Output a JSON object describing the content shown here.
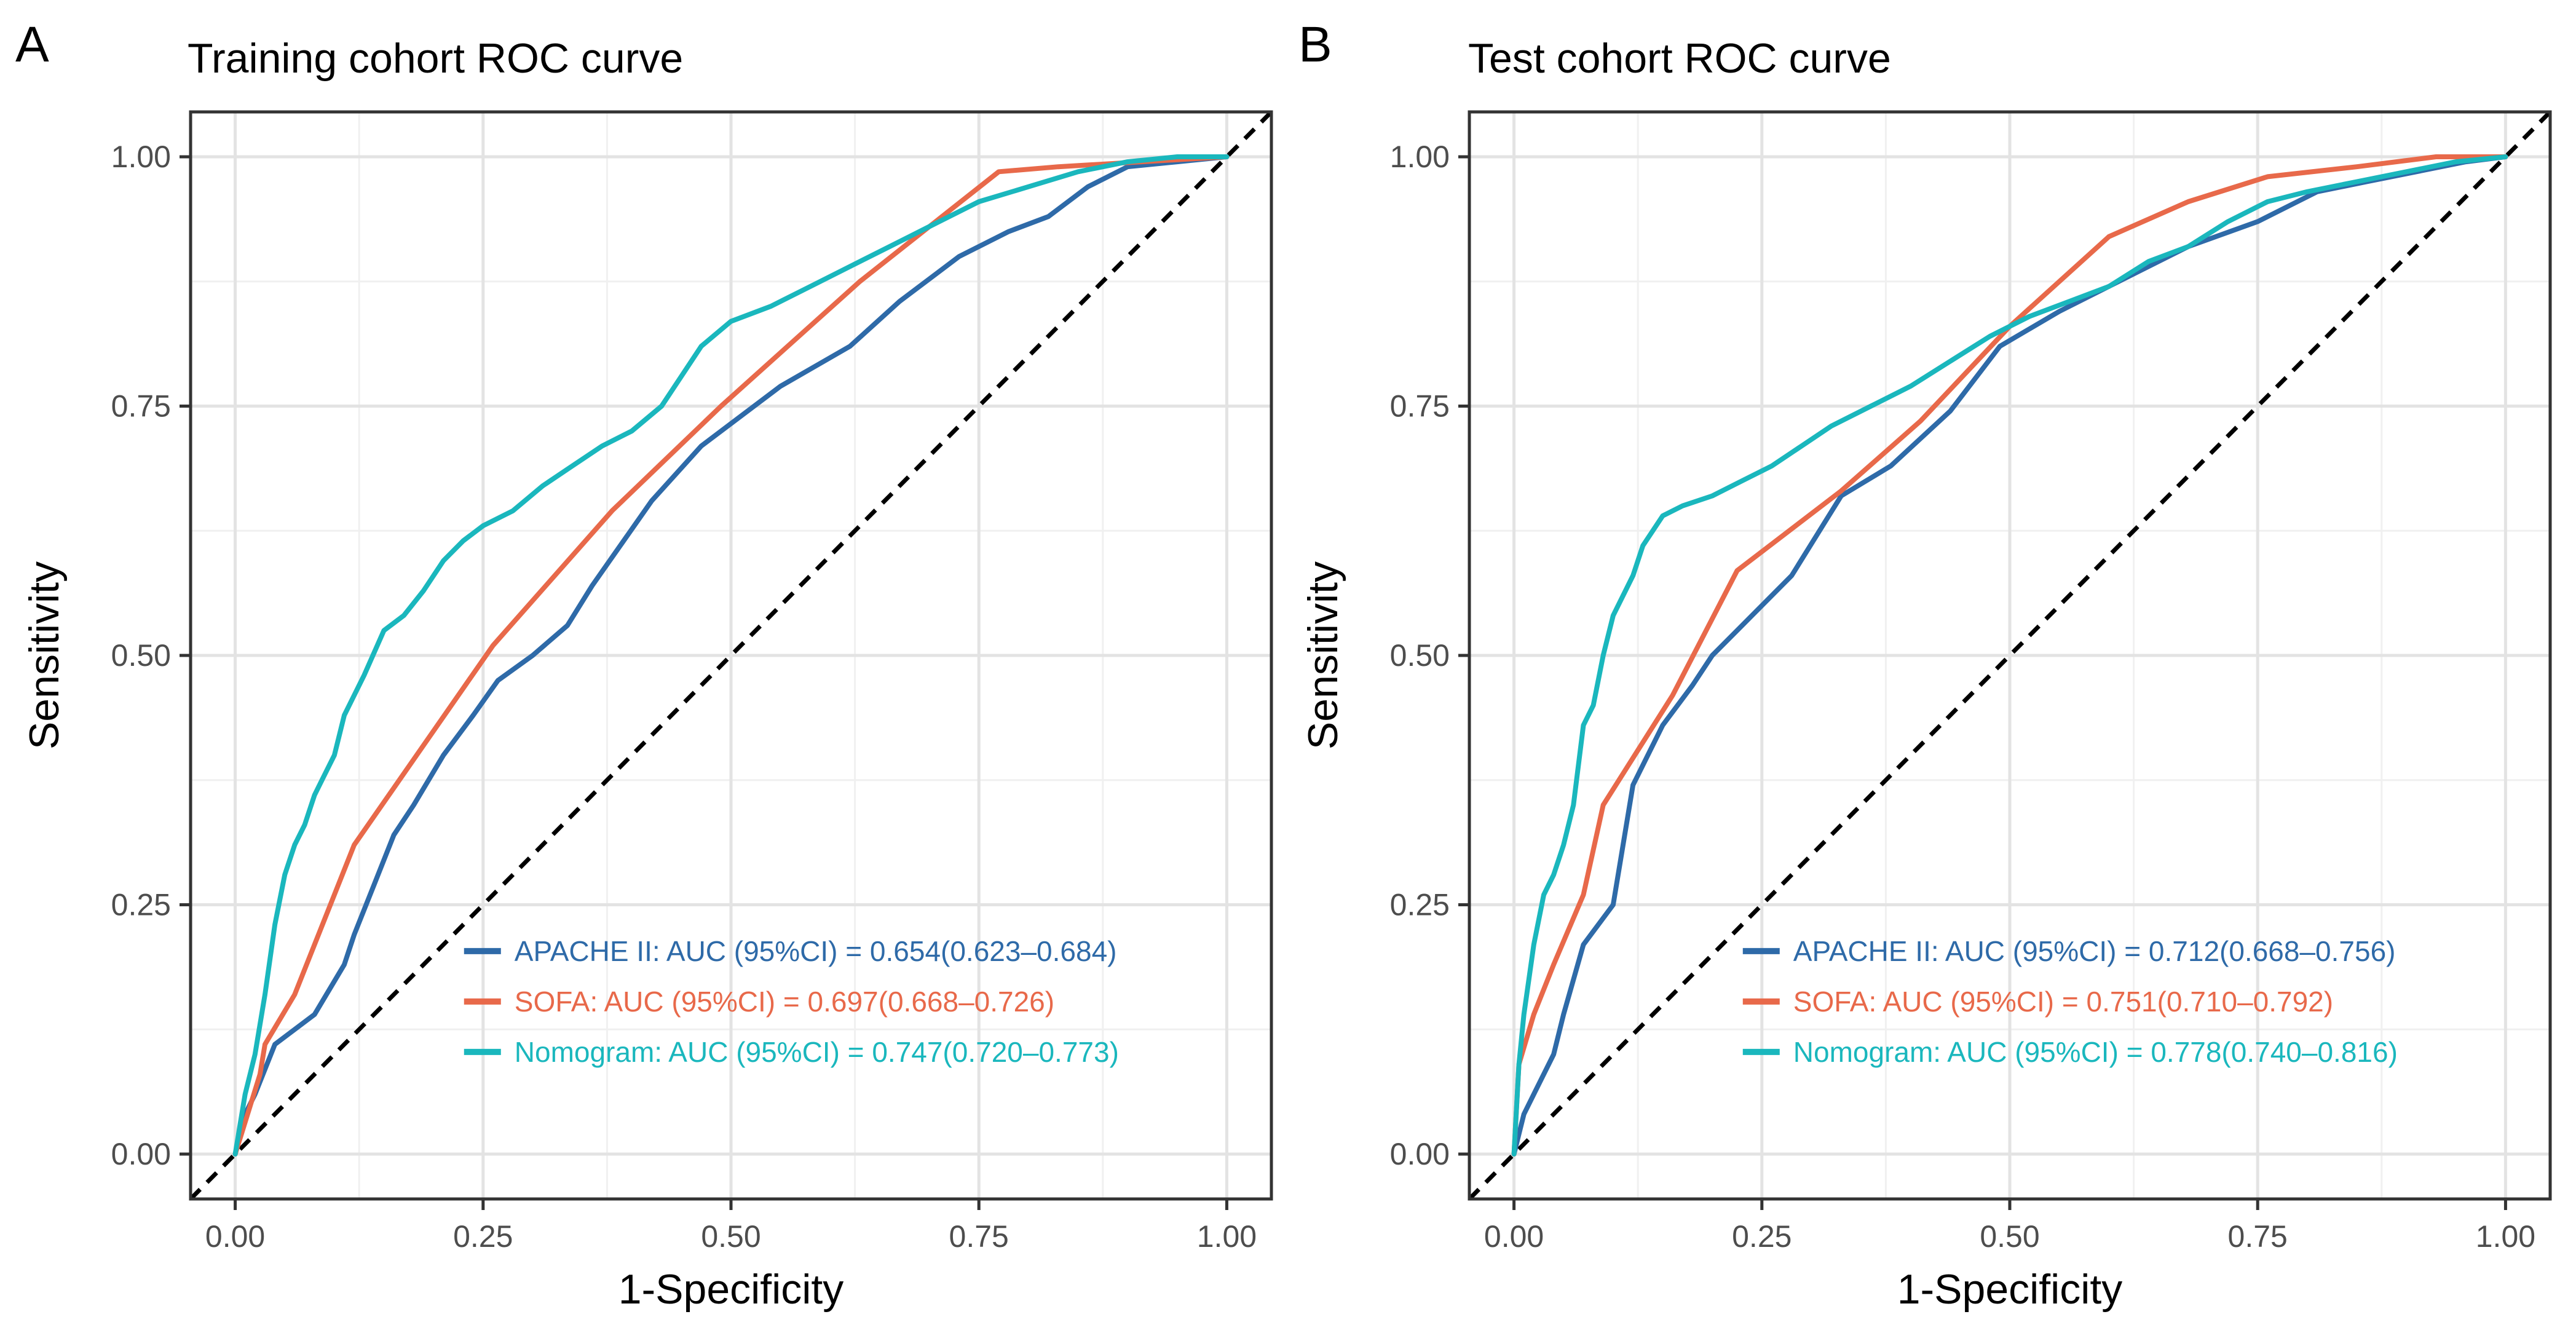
{
  "chart_data": [
    {
      "type": "line",
      "panel_label": "A",
      "title": "Training cohort ROC curve",
      "xlabel": "1-Specificity",
      "ylabel": "Sensitivity",
      "xlim": [
        0,
        1
      ],
      "ylim": [
        0,
        1
      ],
      "xticks": [
        "0.00",
        "0.25",
        "0.50",
        "0.75",
        "1.00"
      ],
      "yticks": [
        "0.00",
        "0.25",
        "0.50",
        "0.75",
        "1.00"
      ],
      "grid": true,
      "legend_position": "bottom-right",
      "reference_line": "diagonal dashed",
      "series": [
        {
          "name": "APACHE II",
          "label": "APACHE II: AUC (95%CI) = 0.654(0.623–0.684)",
          "color": "#2E6AA8",
          "x": [
            0,
            0.01,
            0.02,
            0.04,
            0.08,
            0.11,
            0.12,
            0.14,
            0.16,
            0.18,
            0.21,
            0.24,
            0.265,
            0.3,
            0.335,
            0.36,
            0.42,
            0.47,
            0.55,
            0.62,
            0.67,
            0.73,
            0.78,
            0.82,
            0.86,
            0.9,
            0.95,
            1.0
          ],
          "y": [
            0,
            0.04,
            0.06,
            0.11,
            0.14,
            0.19,
            0.22,
            0.27,
            0.32,
            0.35,
            0.4,
            0.44,
            0.475,
            0.5,
            0.53,
            0.57,
            0.655,
            0.71,
            0.77,
            0.81,
            0.855,
            0.9,
            0.925,
            0.94,
            0.97,
            0.99,
            0.995,
            1.0
          ]
        },
        {
          "name": "SOFA",
          "label": "SOFA: AUC (95%CI) = 0.697(0.668–0.726)",
          "color": "#E8694A",
          "x": [
            0,
            0.025,
            0.03,
            0.06,
            0.12,
            0.19,
            0.26,
            0.38,
            0.49,
            0.63,
            0.77,
            0.83,
            1.0
          ],
          "y": [
            0,
            0.08,
            0.11,
            0.16,
            0.31,
            0.41,
            0.51,
            0.645,
            0.75,
            0.875,
            0.985,
            0.99,
            1.0
          ]
        },
        {
          "name": "Nomogram",
          "label": "Nomogram: AUC (95%CI) = 0.747(0.720–0.773)",
          "color": "#1AB7BD",
          "x": [
            0,
            0.005,
            0.01,
            0.02,
            0.03,
            0.04,
            0.05,
            0.06,
            0.07,
            0.08,
            0.09,
            0.1,
            0.11,
            0.13,
            0.15,
            0.17,
            0.19,
            0.21,
            0.23,
            0.25,
            0.28,
            0.31,
            0.34,
            0.37,
            0.4,
            0.43,
            0.45,
            0.47,
            0.5,
            0.54,
            0.58,
            0.62,
            0.66,
            0.7,
            0.75,
            0.8,
            0.85,
            0.9,
            0.95,
            1.0
          ],
          "y": [
            0,
            0.03,
            0.06,
            0.1,
            0.16,
            0.23,
            0.28,
            0.31,
            0.33,
            0.36,
            0.38,
            0.4,
            0.44,
            0.48,
            0.525,
            0.54,
            0.565,
            0.595,
            0.615,
            0.63,
            0.645,
            0.67,
            0.69,
            0.71,
            0.725,
            0.75,
            0.78,
            0.81,
            0.835,
            0.85,
            0.87,
            0.89,
            0.91,
            0.93,
            0.955,
            0.97,
            0.985,
            0.995,
            1.0,
            1.0
          ]
        }
      ]
    },
    {
      "type": "line",
      "panel_label": "B",
      "title": "Test cohort ROC curve",
      "xlabel": "1-Specificity",
      "ylabel": "Sensitivity",
      "xlim": [
        0,
        1
      ],
      "ylim": [
        0,
        1
      ],
      "xticks": [
        "0.00",
        "0.25",
        "0.50",
        "0.75",
        "1.00"
      ],
      "yticks": [
        "0.00",
        "0.25",
        "0.50",
        "0.75",
        "1.00"
      ],
      "grid": true,
      "legend_position": "bottom-right",
      "reference_line": "diagonal dashed",
      "series": [
        {
          "name": "APACHE II",
          "label": "APACHE II: AUC (95%CI) = 0.712(0.668–0.756)",
          "color": "#2E6AA8",
          "x": [
            0,
            0.005,
            0.01,
            0.02,
            0.04,
            0.05,
            0.07,
            0.1,
            0.12,
            0.15,
            0.18,
            0.2,
            0.24,
            0.28,
            0.33,
            0.38,
            0.44,
            0.49,
            0.55,
            0.62,
            0.68,
            0.75,
            0.81,
            0.86,
            0.91,
            0.96,
            1.0
          ],
          "y": [
            0,
            0.02,
            0.04,
            0.06,
            0.1,
            0.14,
            0.21,
            0.25,
            0.37,
            0.43,
            0.47,
            0.5,
            0.54,
            0.58,
            0.66,
            0.69,
            0.745,
            0.81,
            0.845,
            0.88,
            0.91,
            0.935,
            0.965,
            0.975,
            0.985,
            0.995,
            1.0
          ]
        },
        {
          "name": "SOFA",
          "label": "SOFA: AUC (95%CI) = 0.751(0.710–0.792)",
          "color": "#E8694A",
          "x": [
            0,
            0.005,
            0.02,
            0.04,
            0.07,
            0.09,
            0.16,
            0.225,
            0.33,
            0.41,
            0.5,
            0.6,
            0.68,
            0.76,
            0.85,
            0.93,
            1.0
          ],
          "y": [
            0,
            0.09,
            0.14,
            0.19,
            0.26,
            0.35,
            0.46,
            0.585,
            0.665,
            0.735,
            0.83,
            0.92,
            0.955,
            0.98,
            0.99,
            1.0,
            1.0
          ]
        },
        {
          "name": "Nomogram",
          "label": "Nomogram: AUC (95%CI) = 0.778(0.740–0.816)",
          "color": "#1AB7BD",
          "x": [
            0,
            0.005,
            0.01,
            0.02,
            0.03,
            0.04,
            0.05,
            0.06,
            0.07,
            0.08,
            0.09,
            0.1,
            0.11,
            0.12,
            0.13,
            0.15,
            0.17,
            0.2,
            0.23,
            0.26,
            0.29,
            0.32,
            0.36,
            0.4,
            0.44,
            0.48,
            0.52,
            0.56,
            0.6,
            0.64,
            0.68,
            0.72,
            0.76,
            0.8,
            0.85,
            0.9,
            0.95,
            1.0
          ],
          "y": [
            0,
            0.09,
            0.14,
            0.21,
            0.26,
            0.28,
            0.31,
            0.35,
            0.43,
            0.45,
            0.5,
            0.54,
            0.56,
            0.58,
            0.61,
            0.64,
            0.65,
            0.66,
            0.675,
            0.69,
            0.71,
            0.73,
            0.75,
            0.77,
            0.795,
            0.82,
            0.84,
            0.855,
            0.87,
            0.895,
            0.91,
            0.935,
            0.955,
            0.965,
            0.975,
            0.985,
            0.995,
            1.0
          ]
        }
      ]
    }
  ]
}
